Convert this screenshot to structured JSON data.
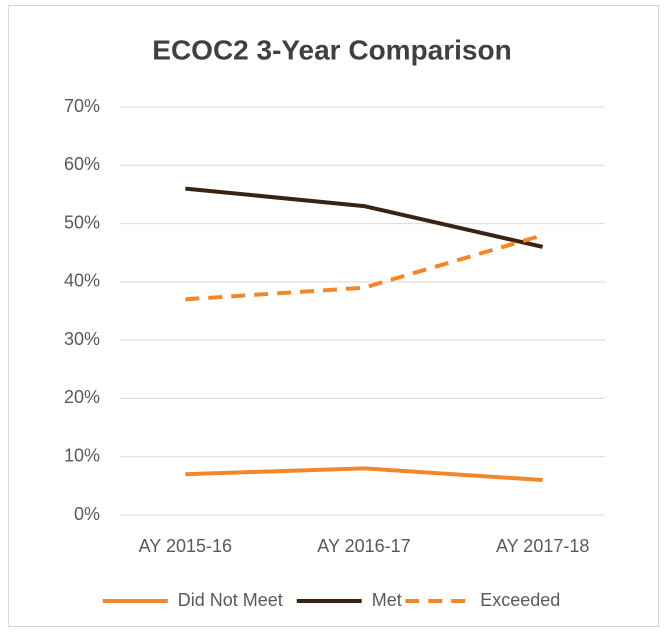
{
  "chart_data": {
    "type": "line",
    "title": "ECOC2 3-Year Comparison",
    "categories": [
      "AY 2015-16",
      "AY 2016-17",
      "AY 2017-18"
    ],
    "series": [
      {
        "name": "Did Not Meet",
        "color": "#f4862a",
        "style": "solid",
        "values": [
          7,
          8,
          6
        ]
      },
      {
        "name": "Met",
        "color": "#3b2314",
        "style": "solid",
        "values": [
          56,
          53,
          46
        ]
      },
      {
        "name": "Exceeded",
        "color": "#f4862a",
        "style": "dashed",
        "values": [
          37,
          39,
          48
        ]
      }
    ],
    "ylim": [
      0,
      70
    ],
    "yticks": [
      {
        "value": 0,
        "label": "0%"
      },
      {
        "value": 10,
        "label": "10%"
      },
      {
        "value": 20,
        "label": "20%"
      },
      {
        "value": 30,
        "label": "30%"
      },
      {
        "value": 40,
        "label": "40%"
      },
      {
        "value": 50,
        "label": "50%"
      },
      {
        "value": 60,
        "label": "60%"
      },
      {
        "value": 70,
        "label": "70%"
      }
    ],
    "grid": true,
    "legend": "bottom"
  }
}
